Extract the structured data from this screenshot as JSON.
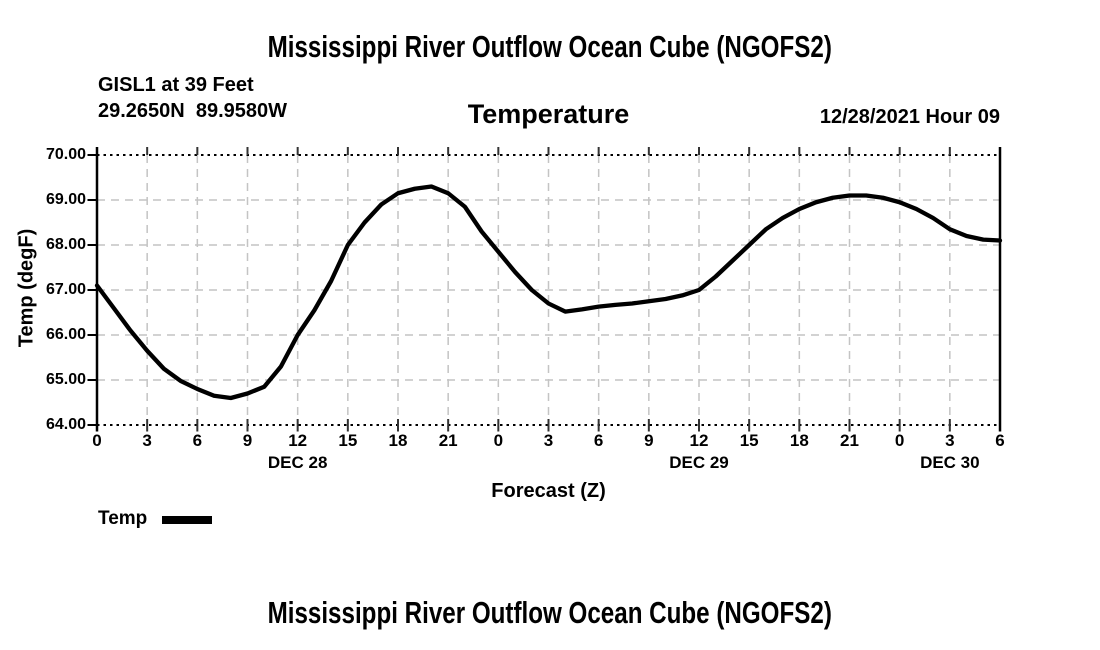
{
  "titles": {
    "top": "Mississippi River Outflow Ocean Cube (NGOFS2)",
    "bottom": "Mississippi River Outflow Ocean Cube (NGOFS2)"
  },
  "header": {
    "station": "GISL1 at 39 Feet",
    "coordinates": "29.2650N  89.9580W",
    "plot_title": "Temperature",
    "datetime": "12/28/2021 Hour 09"
  },
  "chart_data": {
    "type": "line",
    "title": "Temperature",
    "xlabel": "Forecast (Z)",
    "ylabel": "Temp (degF)",
    "ylim": [
      64.0,
      70.0
    ],
    "xlim_hours": [
      0,
      54
    ],
    "grid": {
      "show": true,
      "color": "#c4c4c4",
      "style": "dashed"
    },
    "y_ticks": [
      "70.00",
      "69.00",
      "68.00",
      "67.00",
      "66.00",
      "65.00",
      "64.00"
    ],
    "x_tick_hours": [
      0,
      3,
      6,
      9,
      12,
      15,
      18,
      21,
      24,
      27,
      30,
      33,
      36,
      39,
      42,
      45,
      48,
      51,
      54
    ],
    "x_tick_labels": [
      "0",
      "3",
      "6",
      "9",
      "12",
      "15",
      "18",
      "21",
      "0",
      "3",
      "6",
      "9",
      "12",
      "15",
      "18",
      "21",
      "0",
      "3",
      "6"
    ],
    "date_labels": [
      {
        "label": "DEC 28",
        "hour": 12
      },
      {
        "label": "DEC 29",
        "hour": 36
      },
      {
        "label": "DEC 30",
        "hour": 51
      }
    ],
    "legend": {
      "position": "bottom-left",
      "entries": [
        {
          "label": "Temp",
          "color": "#000000"
        }
      ]
    },
    "series": [
      {
        "name": "Temp",
        "color": "#000000",
        "x_hours": [
          0,
          1,
          2,
          3,
          4,
          5,
          6,
          7,
          8,
          9,
          10,
          11,
          12,
          13,
          14,
          15,
          16,
          17,
          18,
          19,
          20,
          21,
          22,
          23,
          24,
          25,
          26,
          27,
          28,
          29,
          30,
          31,
          32,
          33,
          34,
          35,
          36,
          37,
          38,
          39,
          40,
          41,
          42,
          43,
          44,
          45,
          46,
          47,
          48,
          49,
          50,
          51,
          52,
          53,
          54
        ],
        "values": [
          67.1,
          66.6,
          66.1,
          65.65,
          65.25,
          64.98,
          64.8,
          64.65,
          64.6,
          64.7,
          64.85,
          65.3,
          66.0,
          66.55,
          67.2,
          68.0,
          68.5,
          68.9,
          69.15,
          69.25,
          69.3,
          69.15,
          68.85,
          68.3,
          67.85,
          67.4,
          67.0,
          66.7,
          66.52,
          66.57,
          66.63,
          66.67,
          66.7,
          66.75,
          66.8,
          66.88,
          67.0,
          67.3,
          67.65,
          68.0,
          68.35,
          68.6,
          68.8,
          68.95,
          69.05,
          69.1,
          69.1,
          69.05,
          68.95,
          68.8,
          68.6,
          68.35,
          68.2,
          68.12,
          68.1
        ]
      }
    ]
  }
}
